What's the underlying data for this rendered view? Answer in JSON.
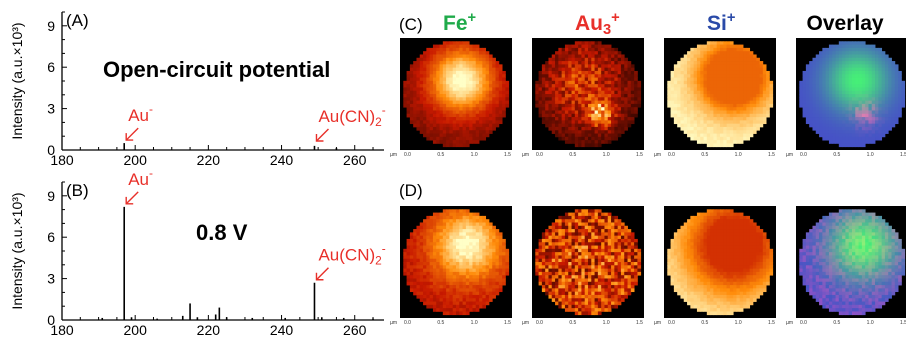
{
  "chart_data": [
    {
      "type": "bar",
      "panel_label": "(A)",
      "title": "Open-circuit potential",
      "ylabel": "Intensity (a.u.×10³)",
      "xlim": [
        180,
        268
      ],
      "ylim": [
        0,
        10
      ],
      "xticks": [
        "180",
        "200",
        "220",
        "240",
        "260"
      ],
      "yticks": [
        "0",
        "3",
        "6",
        "9"
      ],
      "peaks": [
        {
          "x": 197,
          "y": 0.5
        },
        {
          "x": 249,
          "y": 0.3
        },
        {
          "x": 255,
          "y": 0.15
        }
      ],
      "annotations": [
        {
          "text": "Au",
          "sup": "-",
          "sub": "",
          "x": 197
        },
        {
          "text": "Au(CN)",
          "sub": "2",
          "sup": "-",
          "x": 249
        }
      ]
    },
    {
      "type": "bar",
      "panel_label": "(B)",
      "title": "0.8 V",
      "ylabel": "Intensity (a.u.×10³)",
      "xlim": [
        180,
        268
      ],
      "ylim": [
        0,
        10
      ],
      "xticks": [
        "180",
        "200",
        "220",
        "240",
        "260"
      ],
      "yticks": [
        "0",
        "3",
        "6",
        "9"
      ],
      "peaks": [
        {
          "x": 191,
          "y": 0.15
        },
        {
          "x": 197,
          "y": 8.2
        },
        {
          "x": 199,
          "y": 0.2
        },
        {
          "x": 206,
          "y": 0.1
        },
        {
          "x": 213,
          "y": 0.3
        },
        {
          "x": 215,
          "y": 1.2
        },
        {
          "x": 217,
          "y": 0.2
        },
        {
          "x": 222,
          "y": 0.4
        },
        {
          "x": 223,
          "y": 0.9
        },
        {
          "x": 225,
          "y": 0.2
        },
        {
          "x": 232,
          "y": 0.15
        },
        {
          "x": 241,
          "y": 0.15
        },
        {
          "x": 249,
          "y": 2.7
        },
        {
          "x": 251,
          "y": 0.2
        },
        {
          "x": 257,
          "y": 0.15
        },
        {
          "x": 265,
          "y": 0.1
        }
      ],
      "annotations": [
        {
          "text": "Au",
          "sup": "-",
          "sub": "",
          "x": 197
        },
        {
          "text": "Au(CN)",
          "sub": "2",
          "sup": "-",
          "x": 249
        }
      ]
    }
  ],
  "maps": {
    "panel_labels": [
      "(C)",
      "(D)"
    ],
    "columns": [
      {
        "label": "Fe",
        "sub": "",
        "sup": "+",
        "color": "#1faa4a",
        "colormap": "heat"
      },
      {
        "label": "Au",
        "sub": "3",
        "sup": "+",
        "color": "#e8302a",
        "colormap": "heat"
      },
      {
        "label": "Si",
        "sub": "",
        "sup": "+",
        "color": "#2a4aa8",
        "colormap": "heat"
      },
      {
        "label": "Overlay",
        "sub": "",
        "sup": "",
        "color": "#000000",
        "colormap": "overlay"
      }
    ],
    "axis_unit": "µm",
    "axis_ticks": [
      "0.0",
      "0.5",
      "1.0",
      "1.5"
    ]
  }
}
